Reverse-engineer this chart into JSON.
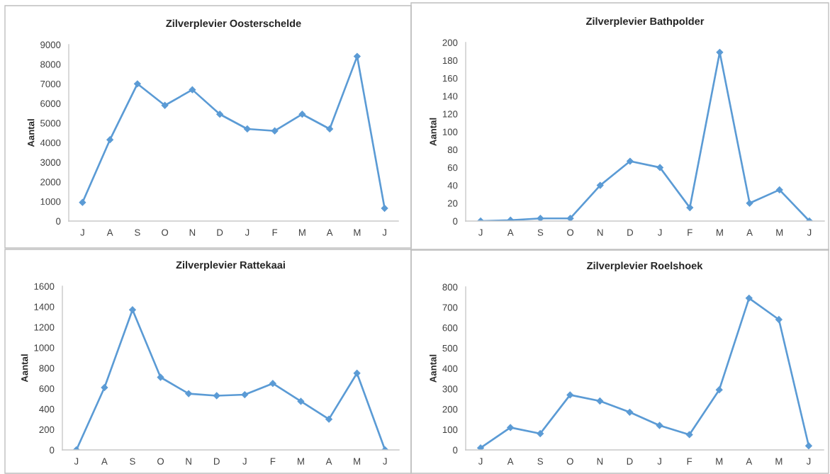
{
  "chart_data": [
    {
      "type": "line",
      "title": "Zilverplevier Oosterschelde",
      "ylabel": "Aantal",
      "categories": [
        "J",
        "A",
        "S",
        "O",
        "N",
        "D",
        "J",
        "F",
        "M",
        "A",
        "M",
        "J"
      ],
      "series": [
        {
          "color": "#5b9bd5",
          "values": [
            950,
            4150,
            7000,
            5900,
            6700,
            5450,
            4700,
            4600,
            5450,
            4700,
            8400,
            650
          ]
        }
      ],
      "ylim": [
        0,
        9000
      ],
      "yticks": [
        0,
        1000,
        2000,
        3000,
        4000,
        5000,
        6000,
        7000,
        8000,
        9000
      ],
      "marker": "diamond",
      "line_style": "solid",
      "grid": false
    },
    {
      "type": "line",
      "title": "Zilverplevier Bathpolder",
      "ylabel": "Aantal",
      "categories": [
        "J",
        "A",
        "S",
        "O",
        "N",
        "D",
        "J",
        "F",
        "M",
        "A",
        "M",
        "J"
      ],
      "series": [
        {
          "color": "#5b9bd5",
          "values": [
            0,
            1,
            3,
            3,
            40,
            67,
            60,
            15,
            189,
            20,
            35,
            0
          ]
        }
      ],
      "ylim": [
        0,
        200
      ],
      "yticks": [
        0,
        20,
        40,
        60,
        80,
        100,
        120,
        140,
        160,
        180,
        200
      ],
      "marker": "diamond",
      "line_style": "solid",
      "grid": false
    },
    {
      "type": "line",
      "title": "Zilverplevier Rattekaai",
      "ylabel": "Aantal",
      "categories": [
        "J",
        "A",
        "S",
        "O",
        "N",
        "D",
        "J",
        "F",
        "M",
        "A",
        "M",
        "J"
      ],
      "series": [
        {
          "color": "#5b9bd5",
          "values": [
            0,
            610,
            1370,
            710,
            550,
            530,
            540,
            650,
            475,
            300,
            750,
            0
          ]
        }
      ],
      "ylim": [
        0,
        1600
      ],
      "yticks": [
        0,
        200,
        400,
        600,
        800,
        1000,
        1200,
        1400,
        1600
      ],
      "marker": "diamond",
      "line_style": "solid",
      "grid": false
    },
    {
      "type": "line",
      "title": "Zilverplevier Roelshoek",
      "ylabel": "Aantal",
      "categories": [
        "J",
        "A",
        "S",
        "O",
        "N",
        "D",
        "J",
        "F",
        "M",
        "A",
        "M",
        "J"
      ],
      "series": [
        {
          "color": "#5b9bd5",
          "values": [
            10,
            110,
            80,
            270,
            240,
            185,
            120,
            75,
            295,
            745,
            640,
            20
          ]
        }
      ],
      "ylim": [
        0,
        800
      ],
      "yticks": [
        0,
        100,
        200,
        300,
        400,
        500,
        600,
        700,
        800
      ],
      "marker": "diamond",
      "line_style": "solid",
      "grid": false
    }
  ]
}
